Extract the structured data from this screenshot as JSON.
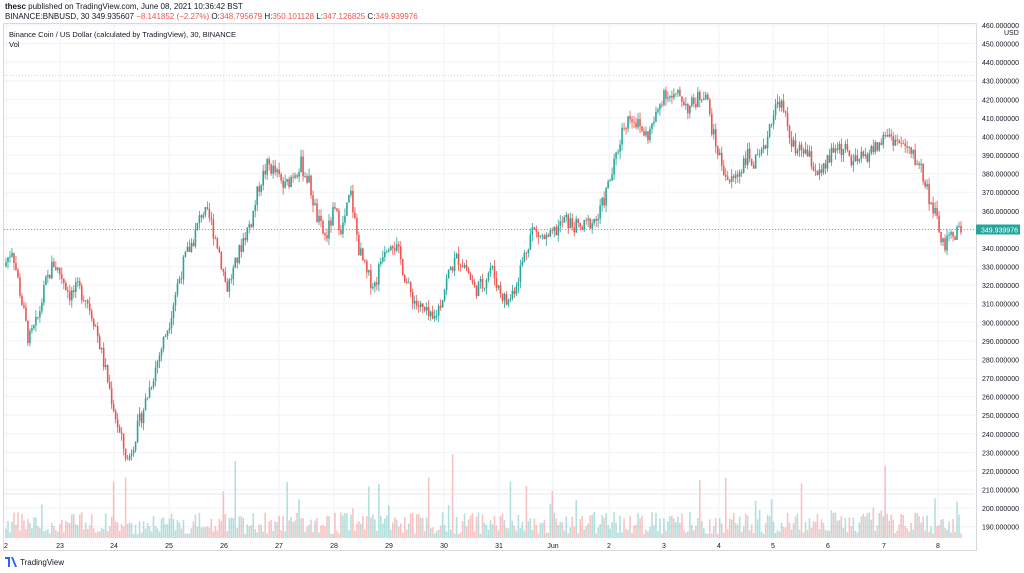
{
  "header": {
    "author": "thesc",
    "published": "published on TradingView.com, June 08, 2021 10:36:42 BST",
    "symbol": "BINANCE:BNBUSD, 30",
    "price": "349.935607",
    "change": "−8.141852 (−2.27%)",
    "o_label": "O:",
    "o_value": "348.795679",
    "h_label": "H:",
    "h_value": "350.101128",
    "l_label": "L:",
    "l_value": "347.126825",
    "c_label": "C:",
    "c_value": "349.939976"
  },
  "legend": {
    "title": "Binance Coin / US Dollar (calculated by TradingView), 30, BINANCE",
    "vol": "Vol"
  },
  "footer": {
    "brand": "TradingView"
  },
  "colors": {
    "up": "#26a69a",
    "down": "#ef5350",
    "grid": "#f0f3fa",
    "axis": "#131722"
  },
  "chart_data": {
    "type": "candlestick",
    "currency": "USD",
    "ylim": [
      185,
      460
    ],
    "y_ticks": [
      "190.000000",
      "200.000000",
      "210.000000",
      "220.000000",
      "230.000000",
      "240.000000",
      "250.000000",
      "260.000000",
      "270.000000",
      "280.000000",
      "290.000000",
      "300.000000",
      "310.000000",
      "320.000000",
      "330.000000",
      "340.000000",
      "350.000000",
      "360.000000",
      "370.000000",
      "380.000000",
      "390.000000",
      "400.000000",
      "410.000000",
      "420.000000",
      "430.000000",
      "440.000000",
      "450.000000",
      "460.000000"
    ],
    "x_ticks": [
      "2",
      "23",
      "24",
      "25",
      "26",
      "27",
      "28",
      "29",
      "30",
      "31",
      "Jun",
      "2",
      "3",
      "4",
      "5",
      "6",
      "7",
      "8"
    ],
    "last_price": 349.939976,
    "last_price_label": "349.939976",
    "close_path": [
      [
        0,
        330
      ],
      [
        1,
        340
      ],
      [
        2,
        315
      ],
      [
        3,
        290
      ],
      [
        4,
        300
      ],
      [
        5,
        320
      ],
      [
        6,
        332
      ],
      [
        7,
        325
      ],
      [
        8,
        315
      ],
      [
        9,
        318
      ],
      [
        10,
        313
      ],
      [
        11,
        300
      ],
      [
        12,
        280
      ],
      [
        13,
        260
      ],
      [
        14,
        240
      ],
      [
        15,
        225
      ],
      [
        16,
        240
      ],
      [
        17,
        255
      ],
      [
        18,
        270
      ],
      [
        19,
        285
      ],
      [
        20,
        300
      ],
      [
        21,
        320
      ],
      [
        22,
        335
      ],
      [
        23,
        345
      ],
      [
        24,
        360
      ],
      [
        25,
        355
      ],
      [
        26,
        340
      ],
      [
        27,
        318
      ],
      [
        28,
        330
      ],
      [
        29,
        345
      ],
      [
        30,
        355
      ],
      [
        31,
        375
      ],
      [
        32,
        385
      ],
      [
        33,
        380
      ],
      [
        34,
        372
      ],
      [
        35,
        380
      ],
      [
        36,
        385
      ],
      [
        37,
        375
      ],
      [
        38,
        355
      ],
      [
        39,
        345
      ],
      [
        40,
        360
      ],
      [
        41,
        350
      ],
      [
        42,
        370
      ],
      [
        43,
        340
      ],
      [
        44,
        325
      ],
      [
        45,
        320
      ],
      [
        46,
        340
      ],
      [
        47,
        345
      ],
      [
        48,
        335
      ],
      [
        49,
        318
      ],
      [
        50,
        310
      ],
      [
        51,
        305
      ],
      [
        52,
        300
      ],
      [
        53,
        312
      ],
      [
        54,
        328
      ],
      [
        55,
        335
      ],
      [
        56,
        330
      ],
      [
        57,
        318
      ],
      [
        58,
        320
      ],
      [
        59,
        330
      ],
      [
        60,
        318
      ],
      [
        61,
        310
      ],
      [
        62,
        320
      ],
      [
        63,
        335
      ],
      [
        64,
        350
      ],
      [
        65,
        346
      ],
      [
        66,
        344
      ],
      [
        67,
        350
      ],
      [
        68,
        355
      ],
      [
        69,
        352
      ],
      [
        70,
        350
      ],
      [
        71,
        354
      ],
      [
        72,
        356
      ],
      [
        73,
        370
      ],
      [
        74,
        385
      ],
      [
        75,
        405
      ],
      [
        76,
        412
      ],
      [
        77,
        405
      ],
      [
        78,
        400
      ],
      [
        79,
        410
      ],
      [
        80,
        425
      ],
      [
        81,
        420
      ],
      [
        82,
        422
      ],
      [
        83,
        415
      ],
      [
        84,
        420
      ],
      [
        85,
        425
      ],
      [
        86,
        400
      ],
      [
        87,
        385
      ],
      [
        88,
        375
      ],
      [
        89,
        380
      ],
      [
        90,
        390
      ],
      [
        91,
        385
      ],
      [
        92,
        390
      ],
      [
        93,
        410
      ],
      [
        94,
        420
      ],
      [
        95,
        405
      ],
      [
        96,
        390
      ],
      [
        97,
        393
      ],
      [
        98,
        385
      ],
      [
        99,
        378
      ],
      [
        100,
        388
      ],
      [
        101,
        395
      ],
      [
        102,
        392
      ],
      [
        103,
        385
      ],
      [
        104,
        388
      ],
      [
        105,
        392
      ],
      [
        106,
        395
      ],
      [
        107,
        402
      ],
      [
        108,
        398
      ],
      [
        109,
        395
      ],
      [
        110,
        390
      ],
      [
        111,
        385
      ],
      [
        112,
        370
      ],
      [
        113,
        355
      ],
      [
        114,
        340
      ],
      [
        115,
        348
      ],
      [
        116,
        350
      ]
    ],
    "volume_ylim": [
      0,
      100
    ],
    "volume_avg": 18
  }
}
